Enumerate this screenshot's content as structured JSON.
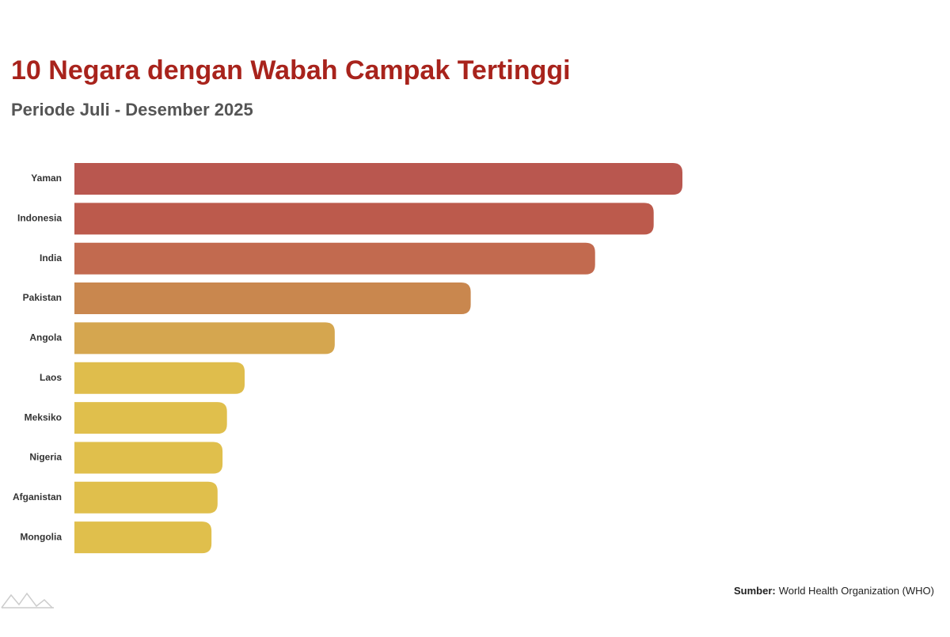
{
  "chart_data": {
    "type": "bar",
    "orientation": "horizontal",
    "title": "10 Negara dengan Wabah Campak Tertinggi",
    "subtitle": "Periode Juli - Desember 2025",
    "categories": [
      "Yaman",
      "Indonesia",
      "India",
      "Pakistan",
      "Angola",
      "Laos",
      "Meksiko",
      "Nigeria",
      "Afganistan",
      "Mongolia"
    ],
    "values": [
      11000,
      10480,
      9420,
      7170,
      4710,
      3080,
      2760,
      2680,
      2590,
      2480
    ],
    "colors": [
      "#b9574f",
      "#bc5a4c",
      "#c26a4f",
      "#c9874e",
      "#d5a64f",
      "#dfbd4c",
      "#e0bf4c",
      "#e0bf4c",
      "#e0bf4c",
      "#e0bf4c"
    ],
    "source_label": "Sumber:",
    "source": "World Health Organization (WHO)"
  }
}
